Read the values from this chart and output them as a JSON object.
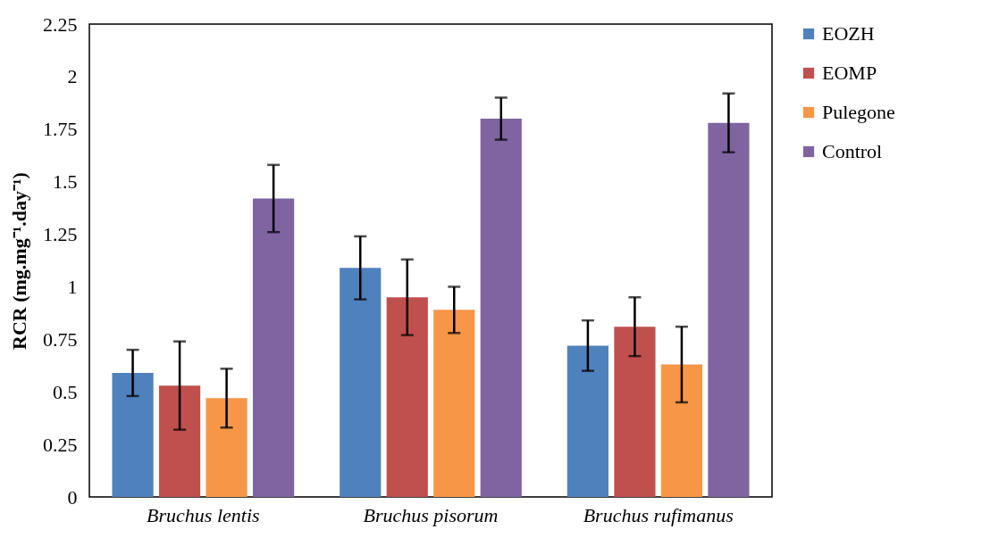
{
  "chart_data": {
    "type": "bar",
    "ylabel": "RCR (mg.mg⁻¹.day⁻¹)",
    "categories": [
      "Bruchus lentis",
      "Bruchus pisorum",
      "Bruchus rufimanus"
    ],
    "series": [
      {
        "name": "EOZH",
        "color": "#4f81bd",
        "values": [
          0.59,
          1.09,
          0.72
        ],
        "errors": [
          0.11,
          0.15,
          0.12
        ]
      },
      {
        "name": "EOMP",
        "color": "#c0504d",
        "values": [
          0.53,
          0.95,
          0.81
        ],
        "errors": [
          0.21,
          0.18,
          0.14
        ]
      },
      {
        "name": "Pulegone",
        "color": "#f79646",
        "values": [
          0.47,
          0.89,
          0.63
        ],
        "errors": [
          0.14,
          0.11,
          0.18
        ]
      },
      {
        "name": "Control",
        "color": "#8064a2",
        "values": [
          1.42,
          1.8,
          1.78
        ],
        "errors": [
          0.16,
          0.1,
          0.14
        ]
      }
    ],
    "ylim": [
      0,
      2.25
    ],
    "yticks": [
      0,
      0.25,
      0.5,
      0.75,
      1,
      1.25,
      1.5,
      1.75,
      2,
      2.25
    ],
    "grid": false,
    "legend": "right"
  }
}
